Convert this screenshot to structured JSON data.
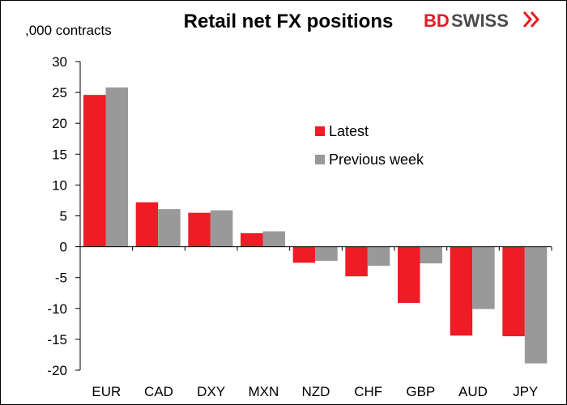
{
  "logo": {
    "text_part1": "BD",
    "text_part2": "SWISS",
    "color_primary": "#e51b24",
    "color_secondary": "#4a4a4a",
    "icon": "double-chevron-icon"
  },
  "chart_data": {
    "type": "bar",
    "title": "Retail net FX positions",
    "ylabel": ",000 contracts",
    "xlabel": "",
    "categories": [
      "EUR",
      "CAD",
      "DXY",
      "MXN",
      "NZD",
      "CHF",
      "GBP",
      "AUD",
      "JPY"
    ],
    "series": [
      {
        "name": "Latest",
        "color": "#ee1c25",
        "values": [
          24.6,
          7.2,
          5.5,
          2.2,
          -2.6,
          -4.8,
          -9.1,
          -14.4,
          -14.5
        ]
      },
      {
        "name": "Previous week",
        "color": "#999999",
        "values": [
          25.8,
          6.1,
          5.9,
          2.5,
          -2.3,
          -3.1,
          -2.7,
          -10.1,
          -18.9
        ]
      }
    ],
    "ylim": [
      -20,
      30
    ],
    "yticks": [
      30,
      25,
      20,
      15,
      10,
      5,
      0,
      -5,
      -10,
      -15,
      -20
    ],
    "ytick_labels": [
      "30",
      "25",
      "20",
      "15",
      "10",
      "5",
      "0",
      "-5",
      "-10",
      "-15",
      "-20"
    ],
    "grid": false,
    "legend_position": "right-center"
  }
}
